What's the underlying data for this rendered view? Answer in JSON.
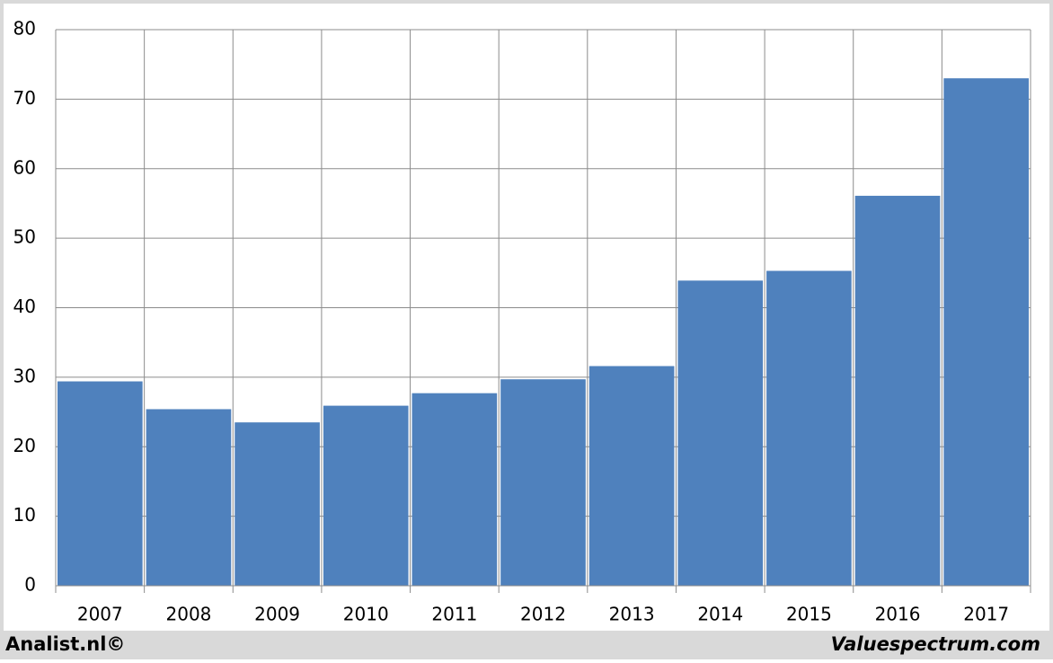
{
  "chart_data": {
    "type": "bar",
    "categories": [
      "2007",
      "2008",
      "2009",
      "2010",
      "2011",
      "2012",
      "2013",
      "2014",
      "2015",
      "2016",
      "2017"
    ],
    "values": [
      29.4,
      25.4,
      23.5,
      25.9,
      27.7,
      29.7,
      31.6,
      43.9,
      45.3,
      56.1,
      73.0
    ],
    "color": "#4f81bd",
    "ylim": [
      0,
      80
    ],
    "yticks": [
      0,
      10,
      20,
      30,
      40,
      50,
      60,
      70,
      80
    ],
    "grid": true,
    "source_left": "Analist.nl©",
    "source_right": "Valuespectrum.com"
  }
}
